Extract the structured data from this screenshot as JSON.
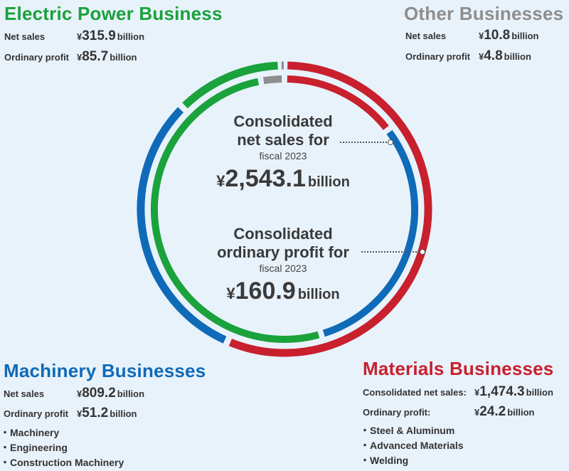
{
  "chart_data": {
    "type": "pie",
    "style": "double-ring donut",
    "rings": [
      {
        "name": "Consolidated net sales for fiscal 2023",
        "ring": "outer",
        "total": "2,543.1",
        "slices": [
          {
            "segment": "Materials Businesses",
            "value": 1474.3,
            "color": "#c8202d"
          },
          {
            "segment": "Machinery Businesses",
            "value": 809.2,
            "color": "#0f6ab8"
          },
          {
            "segment": "Electric Power Business",
            "value": 315.9,
            "color": "#1aa23b"
          },
          {
            "segment": "Other Businesses",
            "value": 10.8,
            "color": "#8e8e8e"
          }
        ]
      },
      {
        "name": "Consolidated ordinary profit for fiscal 2023",
        "ring": "inner",
        "total": "160.9",
        "slices": [
          {
            "segment": "Materials Businesses",
            "value": 24.2,
            "color": "#c8202d"
          },
          {
            "segment": "Machinery Businesses",
            "value": 51.2,
            "color": "#0f6ab8"
          },
          {
            "segment": "Electric Power Business",
            "value": 85.7,
            "color": "#1aa23b"
          },
          {
            "segment": "Other Businesses",
            "value": 4.8,
            "color": "#8e8e8e"
          }
        ]
      }
    ]
  },
  "center": {
    "sales_line1": "Consolidated",
    "sales_line2": "net sales for",
    "sales_fy": "fiscal 2023",
    "sales_yen": "¥",
    "sales_value": "2,543.1",
    "sales_unit": "billion",
    "profit_line1": "Consolidated",
    "profit_line2": "ordinary profit for",
    "profit_fy": "fiscal 2023",
    "profit_yen": "¥",
    "profit_value": "160.9",
    "profit_unit": "billion"
  },
  "electric": {
    "title": "Electric Power Business",
    "color": "#1aa23b",
    "sales_label": "Net sales",
    "sales_value": "315.9",
    "profit_label": "Ordinary profit",
    "profit_value": "85.7"
  },
  "other": {
    "title": "Other Businesses",
    "color": "#8e8e8e",
    "sales_label": "Net sales",
    "sales_value": "10.8",
    "profit_label": "Ordinary profit",
    "profit_value": "4.8"
  },
  "machinery": {
    "title": "Machinery Businesses",
    "color": "#0f6ab8",
    "sales_label": "Net sales",
    "sales_value": "809.2",
    "profit_label": "Ordinary profit",
    "profit_value": "51.2",
    "items": [
      "Machinery",
      "Engineering",
      "Construction Machinery"
    ]
  },
  "materials": {
    "title": "Materials Businesses",
    "color": "#c8202d",
    "sales_label": "Consolidated net sales:",
    "sales_value": "1,474.3",
    "profit_label": "Ordinary profit:",
    "profit_value": "24.2",
    "items": [
      "Steel & Aluminum",
      "Advanced Materials",
      "Welding"
    ]
  },
  "common": {
    "yen": "¥",
    "unit": "billion"
  }
}
